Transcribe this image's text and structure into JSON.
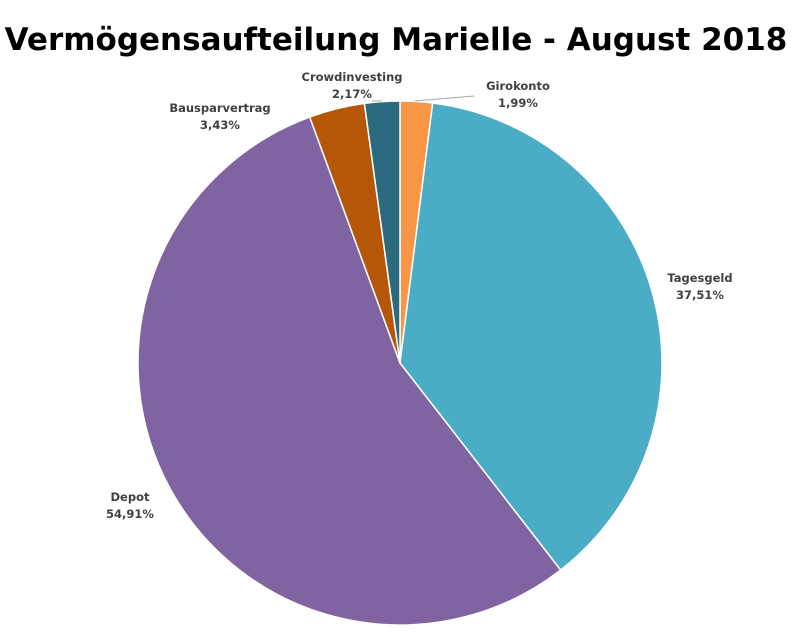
{
  "chart_data": {
    "type": "pie",
    "title": "Vermögensaufteilung Marielle - August 2018",
    "slices": [
      {
        "label": "Girokonto",
        "percent_label": "1,99%",
        "value": 1.99,
        "color": "#F79646"
      },
      {
        "label": "Tagesgeld",
        "percent_label": "37,51%",
        "value": 37.51,
        "color": "#4BACC6"
      },
      {
        "label": "Depot",
        "percent_label": "54,91%",
        "value": 54.91,
        "color": "#8064A2"
      },
      {
        "label": "Bausparvertrag",
        "percent_label": "3,43%",
        "value": 3.43,
        "color": "#B65708"
      },
      {
        "label": "Crowdinvesting",
        "percent_label": "2,17%",
        "value": 2.17,
        "color": "#2C6B7E"
      }
    ],
    "legend": "none",
    "label_position": "outside"
  }
}
